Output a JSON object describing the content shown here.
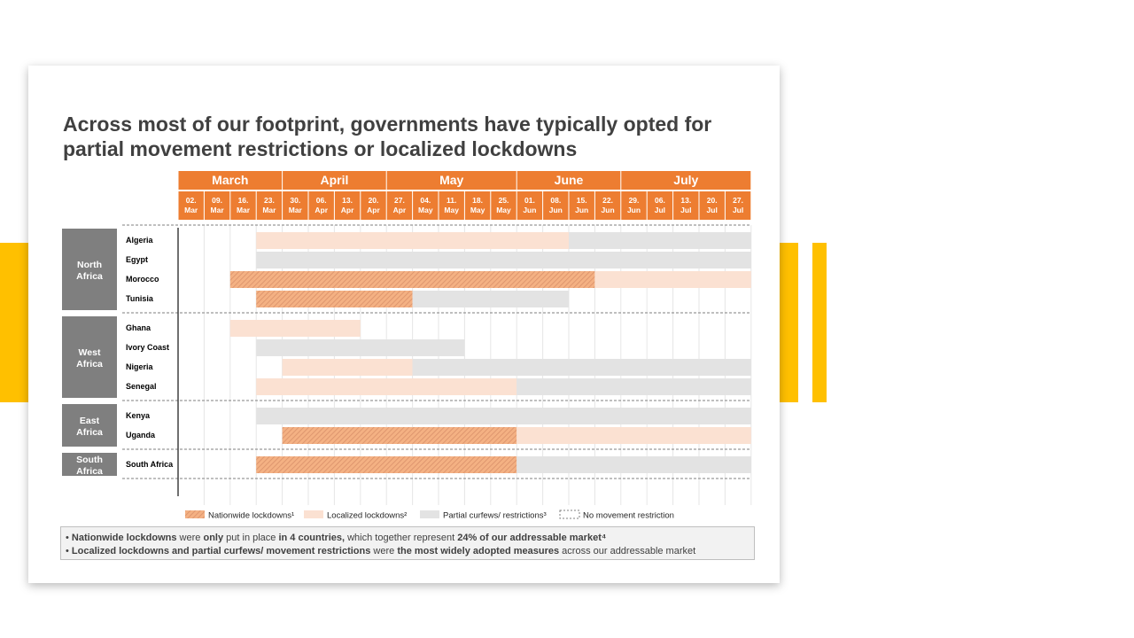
{
  "colors": {
    "accent": "#FFC000",
    "header": "#ED7D31",
    "region": "#7F7F7F",
    "nationwide_fill": "#F4B183",
    "nationwide_hatch": "#D9906A",
    "localized": "#FBE1D2",
    "partial": "#E3E3E3"
  },
  "slide": {
    "title": "Across most of our footprint, governments have typically opted for partial movement restrictions or localized lockdowns"
  },
  "chart_data": {
    "type": "timeline",
    "months": [
      {
        "name": "March",
        "weeks": 4
      },
      {
        "name": "April",
        "weeks": 4
      },
      {
        "name": "May",
        "weeks": 5
      },
      {
        "name": "June",
        "weeks": 4
      },
      {
        "name": "July",
        "weeks": 5
      }
    ],
    "weeks": [
      [
        "02.",
        "Mar"
      ],
      [
        "09.",
        "Mar"
      ],
      [
        "16.",
        "Mar"
      ],
      [
        "23.",
        "Mar"
      ],
      [
        "30.",
        "Mar"
      ],
      [
        "06.",
        "Apr"
      ],
      [
        "13.",
        "Apr"
      ],
      [
        "20.",
        "Apr"
      ],
      [
        "27.",
        "Apr"
      ],
      [
        "04.",
        "May"
      ],
      [
        "11.",
        "May"
      ],
      [
        "18.",
        "May"
      ],
      [
        "25.",
        "May"
      ],
      [
        "01.",
        "Jun"
      ],
      [
        "08.",
        "Jun"
      ],
      [
        "15.",
        "Jun"
      ],
      [
        "22.",
        "Jun"
      ],
      [
        "29.",
        "Jun"
      ],
      [
        "06.",
        "Jul"
      ],
      [
        "13.",
        "Jul"
      ],
      [
        "20.",
        "Jul"
      ],
      [
        "27.",
        "Jul"
      ]
    ],
    "regions": [
      {
        "name": [
          "North",
          "Africa"
        ],
        "countries": [
          {
            "name": "Algeria",
            "periods": [
              {
                "type": "localized",
                "start": 3,
                "end": 15
              },
              {
                "type": "partial",
                "start": 15,
                "end": 22
              }
            ]
          },
          {
            "name": "Egypt",
            "periods": [
              {
                "type": "partial",
                "start": 3,
                "end": 22
              }
            ]
          },
          {
            "name": "Morocco",
            "periods": [
              {
                "type": "nationwide",
                "start": 2,
                "end": 16
              },
              {
                "type": "localized",
                "start": 16,
                "end": 22
              }
            ]
          },
          {
            "name": "Tunisia",
            "periods": [
              {
                "type": "nationwide",
                "start": 3,
                "end": 9
              },
              {
                "type": "partial",
                "start": 9,
                "end": 15
              }
            ]
          }
        ]
      },
      {
        "name": [
          "West",
          "Africa"
        ],
        "countries": [
          {
            "name": "Ghana",
            "periods": [
              {
                "type": "localized",
                "start": 2,
                "end": 7
              }
            ]
          },
          {
            "name": "Ivory Coast",
            "periods": [
              {
                "type": "partial",
                "start": 3,
                "end": 11
              }
            ]
          },
          {
            "name": "Nigeria",
            "periods": [
              {
                "type": "localized",
                "start": 4,
                "end": 9
              },
              {
                "type": "partial",
                "start": 9,
                "end": 22
              }
            ]
          },
          {
            "name": "Senegal",
            "periods": [
              {
                "type": "localized",
                "start": 3,
                "end": 13
              },
              {
                "type": "partial",
                "start": 13,
                "end": 22
              }
            ]
          }
        ]
      },
      {
        "name": [
          "East",
          "Africa"
        ],
        "countries": [
          {
            "name": "Kenya",
            "periods": [
              {
                "type": "partial",
                "start": 3,
                "end": 22
              }
            ]
          },
          {
            "name": "Uganda",
            "periods": [
              {
                "type": "nationwide",
                "start": 4,
                "end": 13
              },
              {
                "type": "localized",
                "start": 13,
                "end": 22
              }
            ]
          }
        ]
      },
      {
        "name": [
          "South",
          "Africa"
        ],
        "countries": [
          {
            "name": "South Africa",
            "periods": [
              {
                "type": "nationwide",
                "start": 3,
                "end": 13
              },
              {
                "type": "partial",
                "start": 13,
                "end": 22
              }
            ]
          }
        ]
      }
    ],
    "legend": [
      {
        "key": "nationwide",
        "label": "Nationwide lockdowns¹"
      },
      {
        "key": "localized",
        "label": "Localized lockdowns²"
      },
      {
        "key": "partial",
        "label": "Partial curfews/ restrictions³"
      },
      {
        "key": "none",
        "label": "No movement restriction"
      }
    ]
  },
  "notes": [
    [
      {
        "text": "Nationwide lockdowns",
        "bold": true
      },
      {
        "text": " were ",
        "bold": false
      },
      {
        "text": "only",
        "bold": true
      },
      {
        "text": " put in place ",
        "bold": false
      },
      {
        "text": "in 4 countries,",
        "bold": true
      },
      {
        "text": " which together represent ",
        "bold": false
      },
      {
        "text": "24% of our addressable market⁴",
        "bold": true
      }
    ],
    [
      {
        "text": "Localized lockdowns and partial curfews/ movement restrictions",
        "bold": true
      },
      {
        "text": " were ",
        "bold": false
      },
      {
        "text": "the most widely adopted measures",
        "bold": true
      },
      {
        "text": " across our addressable market",
        "bold": false
      }
    ]
  ]
}
